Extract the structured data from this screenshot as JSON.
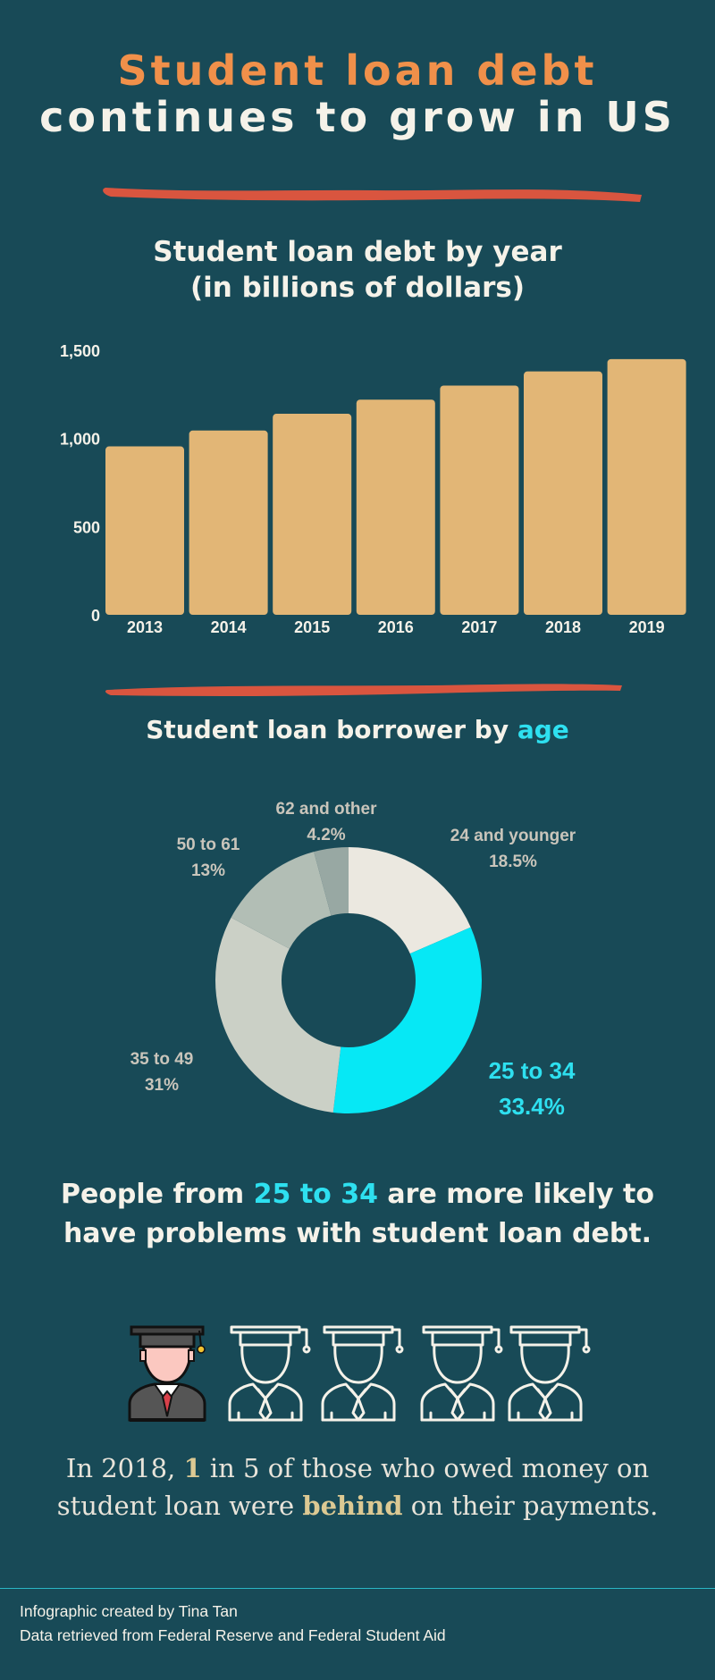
{
  "header": {
    "title_line1": "Student loan debt",
    "title_line2": "continues to grow in US"
  },
  "colors": {
    "background": "#184a57",
    "accent_orange": "#f0904a",
    "bar": "#e2b676",
    "highlight_cyan": "#2ee0f0",
    "stroke_red": "#d9553f"
  },
  "chart_data": [
    {
      "type": "bar",
      "title_line1": "Student loan debt by year",
      "title_line2": "(in billions of dollars)",
      "categories": [
        "2013",
        "2014",
        "2015",
        "2016",
        "2017",
        "2018",
        "2019"
      ],
      "values": [
        955,
        1045,
        1140,
        1220,
        1300,
        1380,
        1450
      ],
      "yticks": [
        "0",
        "500",
        "1,000",
        "1,500"
      ],
      "ytick_values": [
        0,
        500,
        1000,
        1500
      ],
      "ylim": [
        0,
        1500
      ],
      "grid": false
    },
    {
      "type": "pie",
      "style": "donut",
      "title_prefix": "Student loan borrower by ",
      "title_highlight": "age",
      "slices": [
        {
          "label": "24 and younger",
          "pct": "18.5%",
          "value": 18.5,
          "color": "#ebe8e0"
        },
        {
          "label": "25 to 34",
          "pct": "33.4%",
          "value": 33.4,
          "color": "#06e8f5"
        },
        {
          "label": "35 to 49",
          "pct": "31%",
          "value": 31,
          "color": "#cbd0c6"
        },
        {
          "label": "50 to 61",
          "pct": "13%",
          "value": 13,
          "color": "#b2beb5"
        },
        {
          "label": "62 and other",
          "pct": "4.2%",
          "value": 4.2,
          "color": "#98a8a3"
        }
      ]
    }
  ],
  "statement": {
    "pre": "People from ",
    "highlight": "25 to 34",
    "post_line1": " are more likely to",
    "line2": "have problems with student loan debt."
  },
  "icons": [
    "graduate-filled-icon",
    "graduate-outline-icon",
    "graduate-outline-icon",
    "graduate-outline-icon",
    "graduate-outline-icon"
  ],
  "fact": {
    "p1": "In 2018, ",
    "one": "1",
    "p2": " in 5 of those who owed money on",
    "p3": "student loan were ",
    "behind": "behind",
    "p4": " on their payments."
  },
  "footer": {
    "credit": "Infographic created by Tina Tan",
    "source": "Data retrieved from Federal Reserve and Federal Student Aid"
  }
}
